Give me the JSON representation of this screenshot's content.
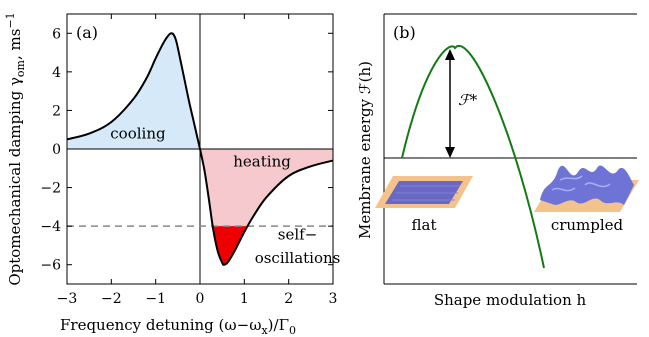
{
  "chart_data": [
    {
      "type": "area",
      "panel_label": "(a)",
      "xlabel": "Frequency detuning (ω−ω",
      "xlabel_sub": "x",
      "xlabel_tail": ")/Γ",
      "xlabel_sub2": "0",
      "ylabel": "Optomechanical damping γ",
      "ylabel_sub": "om",
      "ylabel_unit": ", ms",
      "ylabel_sup": "−1",
      "xlim": [
        -3,
        3
      ],
      "ylim": [
        -7,
        7
      ],
      "xticks": [
        "−3",
        "−2",
        "−1",
        "0",
        "1",
        "2",
        "3"
      ],
      "yticks": [
        "6",
        "4",
        "2",
        "0",
        "−2",
        "−4",
        "−6"
      ],
      "threshold": -4,
      "series": [
        {
          "x": [
            -3.0,
            -2.5,
            -2.0,
            -1.5,
            -1.2,
            -1.0,
            -0.8,
            -0.65,
            -0.55,
            -0.45,
            -0.35,
            -0.25,
            -0.15,
            -0.05,
            0.0,
            0.1,
            0.2,
            0.3,
            0.4,
            0.5,
            0.55,
            0.65,
            0.8,
            1.0,
            1.2,
            1.5,
            2.0,
            2.5,
            3.0
          ],
          "y": [
            0.5,
            0.8,
            1.4,
            2.6,
            3.7,
            4.7,
            5.6,
            6.0,
            5.7,
            4.7,
            3.6,
            2.5,
            1.5,
            0.5,
            0.0,
            -1.1,
            -2.6,
            -4.2,
            -5.3,
            -5.9,
            -6.0,
            -5.8,
            -5.2,
            -4.3,
            -3.5,
            -2.5,
            -1.4,
            -0.9,
            -0.6
          ]
        }
      ],
      "annotations": {
        "cooling": "cooling",
        "heating": "heating",
        "self": "self−",
        "oscillations": "oscillations"
      },
      "colors": {
        "cooling": "#d6e9f8",
        "heating": "#f6c9cf",
        "self": "#ee0000",
        "cooling_text": "#1f2fd0",
        "heating_text": "#e46a6a",
        "self_text": "#e00000",
        "threshold": "#888888"
      }
    },
    {
      "type": "line",
      "panel_label": "(b)",
      "xlabel": "Shape modulation h",
      "ylabel": "Membrane energy ℱ(h)",
      "barrier_label": "ℱ*",
      "flat_label": "flat",
      "crumpled_label": "crumpled",
      "colors": {
        "curve": "#137a13",
        "flat_text": "#2233cc",
        "crumpled_text": "#dd1111",
        "membrane_base": "#f4c38c",
        "membrane_flat": "#5a5ec8",
        "membrane_crumpled": "#6e73d6"
      }
    }
  ]
}
